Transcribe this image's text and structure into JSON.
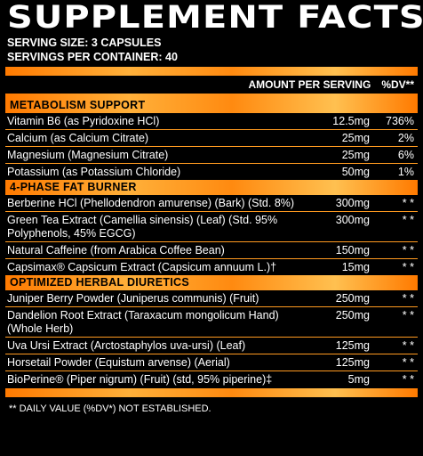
{
  "title": "SUPPLEMENT FACTS",
  "serving_size": "SERVING SIZE: 3 CAPSULES",
  "servings_per_container": "SERVINGS PER CONTAINER: 40",
  "header": {
    "amount": "AMOUNT PER SERVING",
    "dv": "%DV**"
  },
  "sections": [
    {
      "title": "METABOLISM SUPPORT",
      "rows": [
        {
          "name": "Vitamin B6 (as Pyridoxine HCl)",
          "amount": "12.5mg",
          "dv": "736%"
        },
        {
          "name": "Calcium (as Calcium Citrate)",
          "amount": "25mg",
          "dv": "2%"
        },
        {
          "name": "Magnesium (Magnesium Citrate)",
          "amount": "25mg",
          "dv": "6%"
        },
        {
          "name": "Potassium (as Potassium Chloride)",
          "amount": "50mg",
          "dv": "1%"
        }
      ]
    },
    {
      "title": "4-PHASE FAT BURNER",
      "rows": [
        {
          "name": "Berberine HCl (Phellodendron amurense) (Bark) (Std. 8%)",
          "amount": "300mg",
          "dv": "* *"
        },
        {
          "name": "Green Tea Extract (Camellia sinensis) (Leaf) (Std. 95% Polyphenols, 45% EGCG)",
          "amount": "300mg",
          "dv": "* *"
        },
        {
          "name": "Natural Caffeine (from Arabica Coffee Bean)",
          "amount": "150mg",
          "dv": "* *"
        },
        {
          "name": "Capsimax® Capsicum Extract (Capsicum annuum L.)†",
          "amount": "15mg",
          "dv": "* *"
        }
      ]
    },
    {
      "title": "OPTIMIZED HERBAL DIURETICS",
      "rows": [
        {
          "name": "Juniper Berry Powder (Juniperus communis) (Fruit)",
          "amount": "250mg",
          "dv": "* *"
        },
        {
          "name": "Dandelion Root Extract (Taraxacum mongolicum Hand) (Whole Herb)",
          "amount": "250mg",
          "dv": "* *"
        },
        {
          "name": "Uva Ursi Extract (Arctostaphylos uva-ursi) (Leaf)",
          "amount": "125mg",
          "dv": "* *"
        },
        {
          "name": "Horsetail Powder (Equistum arvense) (Aerial)",
          "amount": "125mg",
          "dv": "* *"
        },
        {
          "name": "BioPerine® (Piper nigrum) (Fruit) (std, 95% piperine)‡",
          "amount": "5mg",
          "dv": "* *"
        }
      ]
    }
  ],
  "footnote": "** DAILY VALUE (%DV*) NOT ESTABLISHED.",
  "colors": {
    "accent": "#ff9a20",
    "background": "#000000",
    "text": "#ffffff"
  }
}
